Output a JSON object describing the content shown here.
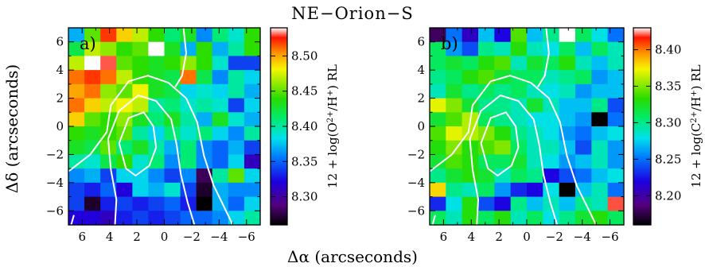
{
  "title": "NE−Orion−S",
  "xlabel": "Δα (arcseconds)",
  "ylabel": "Δδ (arcseconds)",
  "chart_data": [
    {
      "type": "heatmap",
      "panel": "a)",
      "x_ticks": [
        6,
        4,
        2,
        0,
        -2,
        -4,
        -6
      ],
      "y_ticks": [
        6,
        4,
        2,
        0,
        -2,
        -4,
        -6
      ],
      "x_tick_labels": [
        "6",
        "4",
        "2",
        "0",
        "−2",
        "−4",
        "−6"
      ],
      "y_tick_labels": [
        "6",
        "4",
        "2",
        "0",
        "−2",
        "−4",
        "−6"
      ],
      "xlim": [
        7,
        -7
      ],
      "ylim": [
        -7,
        7
      ],
      "grid": false,
      "colorbar": {
        "label": "12 + log(O2+/H+) RL",
        "label_main": "12 + log(O",
        "label_sup1": "2+",
        "label_mid": "/H",
        "label_sup2": "+",
        "label_end": ") RL",
        "range": [
          8.26,
          8.54
        ],
        "ticks": [
          8.3,
          8.35,
          8.4,
          8.45,
          8.5
        ],
        "tick_labels": [
          "8.30",
          "8.35",
          "8.40",
          "8.45",
          "8.50"
        ]
      },
      "values": [
        [
          8.37,
          8.45,
          8.52,
          8.49,
          8.47,
          8.44,
          8.41,
          8.43,
          8.36,
          8.41,
          8.39,
          8.44
        ],
        [
          8.42,
          8.47,
          8.46,
          8.44,
          8.45,
          8.58,
          8.43,
          8.37,
          8.44,
          8.37,
          8.4,
          8.44
        ],
        [
          8.47,
          8.58,
          8.53,
          8.45,
          8.44,
          8.43,
          8.44,
          8.46,
          8.44,
          8.39,
          8.34,
          8.34
        ],
        [
          8.51,
          8.52,
          8.51,
          8.47,
          8.44,
          8.43,
          8.42,
          8.51,
          8.42,
          8.36,
          8.4,
          8.38
        ],
        [
          8.5,
          8.51,
          8.46,
          8.45,
          8.48,
          8.43,
          8.42,
          8.38,
          8.39,
          8.38,
          8.4,
          8.37
        ],
        [
          8.51,
          8.49,
          8.47,
          8.48,
          8.47,
          8.4,
          8.41,
          8.39,
          8.4,
          8.39,
          8.34,
          8.38
        ],
        [
          8.49,
          8.45,
          8.44,
          8.46,
          8.43,
          8.41,
          8.43,
          8.4,
          8.37,
          8.43,
          8.39,
          8.37
        ],
        [
          8.44,
          8.43,
          8.44,
          8.45,
          8.4,
          8.38,
          8.41,
          8.39,
          8.41,
          8.38,
          8.36,
          8.4
        ],
        [
          8.43,
          8.42,
          8.45,
          8.41,
          8.43,
          8.4,
          8.37,
          8.41,
          8.36,
          8.35,
          8.37,
          8.34
        ],
        [
          8.4,
          8.39,
          8.42,
          8.44,
          8.39,
          8.41,
          8.36,
          8.41,
          8.36,
          8.35,
          8.38,
          8.31
        ],
        [
          8.36,
          8.37,
          8.34,
          8.38,
          8.38,
          8.36,
          8.34,
          8.36,
          8.28,
          8.4,
          8.45,
          8.38
        ],
        [
          8.34,
          8.33,
          8.35,
          8.32,
          8.38,
          8.37,
          8.39,
          8.34,
          8.27,
          8.37,
          8.36,
          8.36
        ],
        [
          8.34,
          8.27,
          8.33,
          8.34,
          8.33,
          8.34,
          8.35,
          8.33,
          8.26,
          8.37,
          8.35,
          8.38
        ],
        [
          8.32,
          8.32,
          8.31,
          8.33,
          8.34,
          8.33,
          8.34,
          8.35,
          8.35,
          8.36,
          8.38,
          8.4
        ]
      ]
    },
    {
      "type": "heatmap",
      "panel": "b)",
      "x_ticks": [
        6,
        4,
        2,
        0,
        -2,
        -4,
        -6
      ],
      "y_ticks": [
        6,
        4,
        2,
        0,
        -2,
        -4,
        -6
      ],
      "x_tick_labels": [
        "6",
        "4",
        "2",
        "0",
        "−2",
        "−4",
        "−6"
      ],
      "y_tick_labels": [
        "6",
        "4",
        "2",
        "0",
        "−2",
        "−4",
        "−6"
      ],
      "xlim": [
        7,
        -7
      ],
      "ylim": [
        -7,
        7
      ],
      "grid": false,
      "colorbar": {
        "label": "12 + log(C2+/H+) RL",
        "label_main": "12 + log(C",
        "label_sup1": "2+",
        "label_mid": "/H",
        "label_sup2": "+",
        "label_end": ") RL",
        "range": [
          8.16,
          8.43
        ],
        "ticks": [
          8.2,
          8.25,
          8.3,
          8.35,
          8.4
        ],
        "tick_labels": [
          "8.20",
          "8.25",
          "8.30",
          "8.35",
          "8.40"
        ]
      },
      "values": [
        [
          8.18,
          8.25,
          8.21,
          8.27,
          8.22,
          8.34,
          8.27,
          8.3,
          8.5,
          8.31,
          8.28,
          8.25
        ],
        [
          8.31,
          8.26,
          8.24,
          8.3,
          8.29,
          8.33,
          8.29,
          8.28,
          8.31,
          8.27,
          8.31,
          8.29
        ],
        [
          8.31,
          8.32,
          8.31,
          8.33,
          8.34,
          8.29,
          8.32,
          8.31,
          8.33,
          8.29,
          8.27,
          8.29
        ],
        [
          8.3,
          8.31,
          8.33,
          8.34,
          8.32,
          8.31,
          8.31,
          8.29,
          8.3,
          8.31,
          8.26,
          8.27
        ],
        [
          8.29,
          8.32,
          8.3,
          8.31,
          8.3,
          8.31,
          8.29,
          8.28,
          8.29,
          8.26,
          8.27,
          8.27
        ],
        [
          8.37,
          8.35,
          8.32,
          8.3,
          8.3,
          8.29,
          8.32,
          8.29,
          8.27,
          8.27,
          8.3,
          8.24
        ],
        [
          8.32,
          8.34,
          8.36,
          8.31,
          8.3,
          8.29,
          8.28,
          8.28,
          8.27,
          8.26,
          8.16,
          8.25
        ],
        [
          8.34,
          8.37,
          8.36,
          8.35,
          8.33,
          8.3,
          8.29,
          8.28,
          8.26,
          8.25,
          8.27,
          8.28
        ],
        [
          8.33,
          8.35,
          8.33,
          8.34,
          8.35,
          8.31,
          8.29,
          8.29,
          8.27,
          8.24,
          8.29,
          8.26
        ],
        [
          8.32,
          8.34,
          8.33,
          8.31,
          8.31,
          8.32,
          8.29,
          8.28,
          8.26,
          8.27,
          8.29,
          8.26
        ],
        [
          8.3,
          8.32,
          8.33,
          8.32,
          8.29,
          8.31,
          8.3,
          8.22,
          8.24,
          8.25,
          8.27,
          8.28
        ],
        [
          8.38,
          8.3,
          8.29,
          8.31,
          8.26,
          8.23,
          8.22,
          8.28,
          8.16,
          8.27,
          8.29,
          8.25
        ],
        [
          8.23,
          8.28,
          8.33,
          8.24,
          8.22,
          8.3,
          8.27,
          8.29,
          8.27,
          8.3,
          8.29,
          8.42
        ],
        [
          8.31,
          8.29,
          8.33,
          8.31,
          8.33,
          8.29,
          8.31,
          8.28,
          8.3,
          8.32,
          8.33,
          8.31
        ]
      ]
    }
  ]
}
